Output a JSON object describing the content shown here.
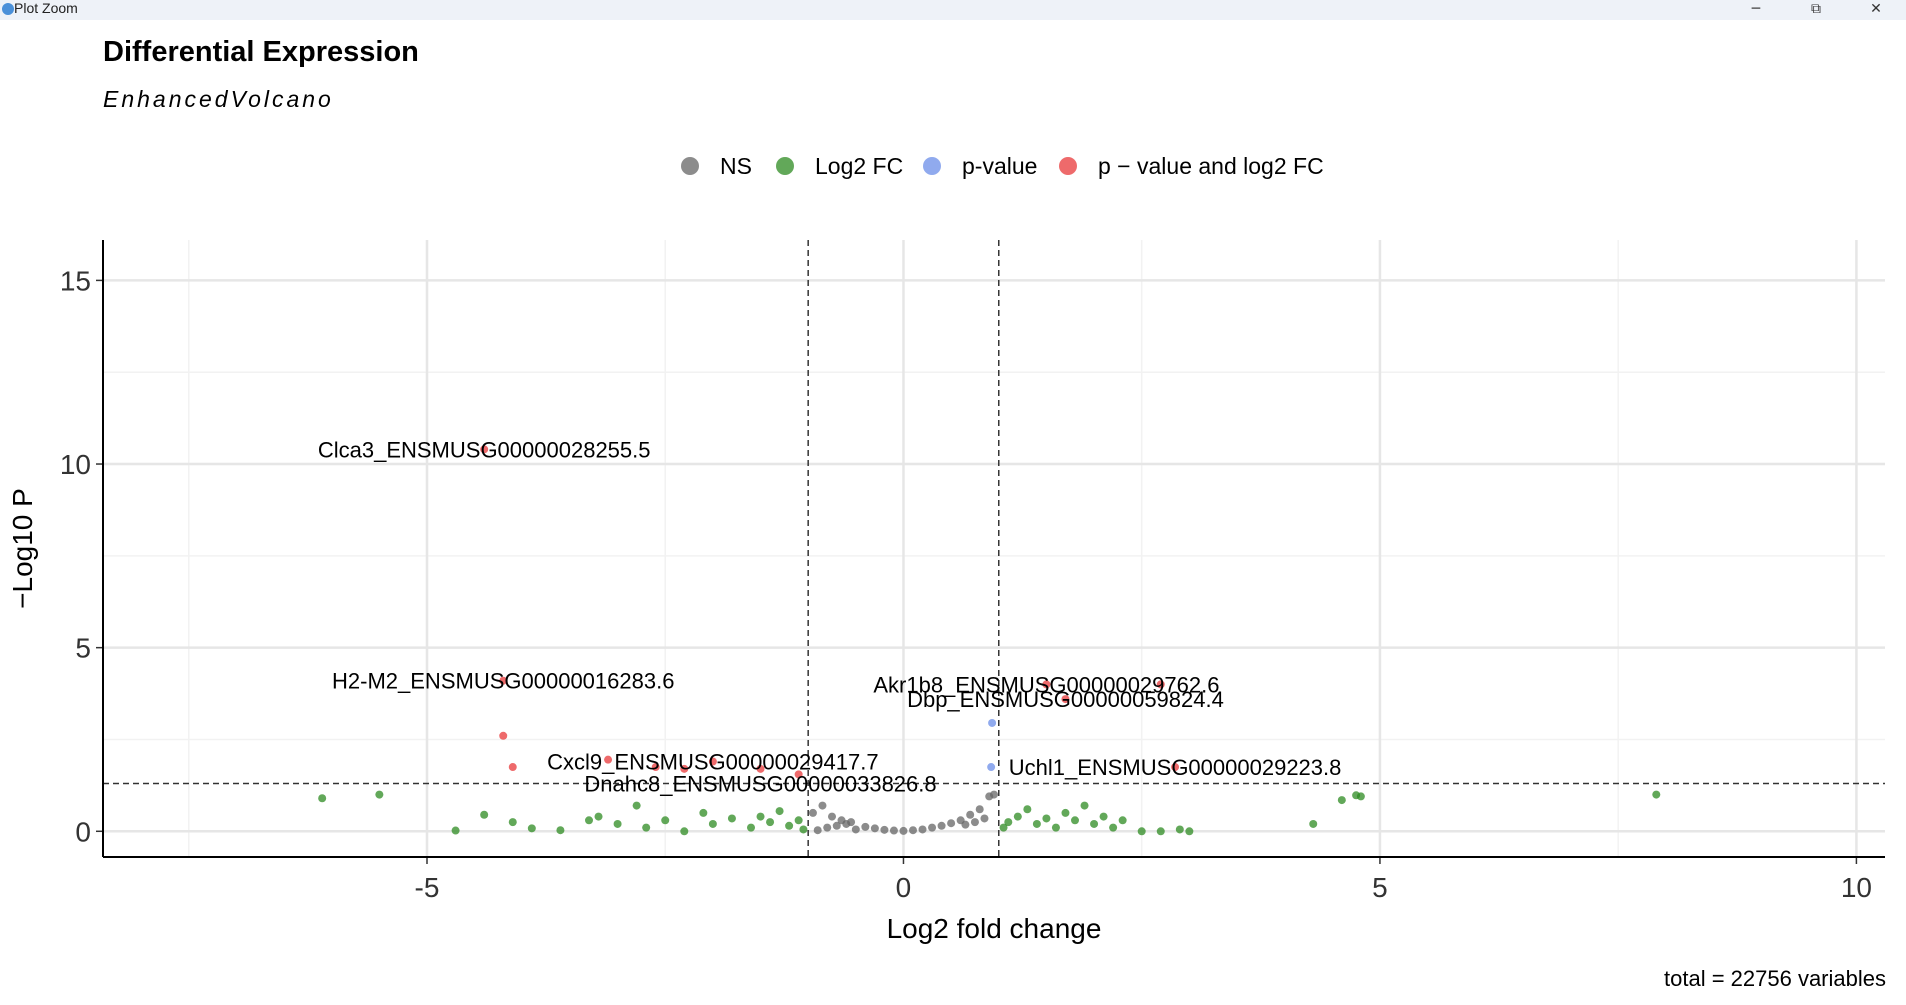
{
  "window": {
    "title": "Plot Zoom",
    "minimize_glyph": "─",
    "restore_glyph": "⧉",
    "close_glyph": "✕"
  },
  "plot": {
    "title": "Differential Expression",
    "subtitle": "EnhancedVolcano",
    "caption": "total = 22756 variables"
  },
  "colors": {
    "NS": "#666666",
    "Log2FC": "#2e8b22",
    "pvalue": "#6b8ee8",
    "both": "#e8383a"
  },
  "chart_data": {
    "type": "scatter",
    "xlabel": "Log2 fold change",
    "ylabel": "−Log10 P",
    "xlim": [
      -8.4,
      10.3
    ],
    "ylim": [
      -0.7,
      16.1
    ],
    "x_ticks": [
      "-5",
      "0",
      "5",
      "10"
    ],
    "x_tick_values": [
      -5,
      0,
      5,
      10
    ],
    "y_ticks": [
      "0",
      "5",
      "10",
      "15"
    ],
    "y_tick_values": [
      0,
      5,
      10,
      15
    ],
    "grid": true,
    "legend_position": "top",
    "legend": [
      {
        "key": "NS",
        "label": "NS"
      },
      {
        "key": "Log2FC",
        "label": "Log2 FC"
      },
      {
        "key": "pvalue",
        "label": "p-value"
      },
      {
        "key": "both",
        "label": "p − value and log2 FC"
      }
    ],
    "fc_cutoff": [
      -1,
      1
    ],
    "p_cutoff_log10": 1.3,
    "series": [
      {
        "name": "NS",
        "points": [
          [
            -0.9,
            0.03
          ],
          [
            -0.8,
            0.1
          ],
          [
            -0.7,
            0.15
          ],
          [
            -0.6,
            0.2
          ],
          [
            -0.5,
            0.05
          ],
          [
            -0.4,
            0.12
          ],
          [
            -0.3,
            0.08
          ],
          [
            -0.2,
            0.04
          ],
          [
            -0.1,
            0.02
          ],
          [
            0,
            0.01
          ],
          [
            0.1,
            0.03
          ],
          [
            0.2,
            0.05
          ],
          [
            0.3,
            0.1
          ],
          [
            0.4,
            0.15
          ],
          [
            0.5,
            0.22
          ],
          [
            0.6,
            0.3
          ],
          [
            0.7,
            0.45
          ],
          [
            0.8,
            0.6
          ],
          [
            0.9,
            0.95
          ],
          [
            0.95,
            1.0
          ],
          [
            -0.95,
            0.5
          ],
          [
            -0.85,
            0.7
          ],
          [
            -0.75,
            0.4
          ],
          [
            -0.65,
            0.3
          ],
          [
            -0.55,
            0.25
          ],
          [
            0.85,
            0.35
          ],
          [
            0.75,
            0.25
          ],
          [
            0.65,
            0.18
          ]
        ]
      },
      {
        "name": "Log2 FC",
        "points": [
          [
            -6.1,
            0.9
          ],
          [
            -5.5,
            1.0
          ],
          [
            -4.7,
            0.02
          ],
          [
            -4.4,
            0.45
          ],
          [
            -4.1,
            0.25
          ],
          [
            -3.9,
            0.08
          ],
          [
            -3.6,
            0.03
          ],
          [
            -3.3,
            0.3
          ],
          [
            -3.2,
            0.4
          ],
          [
            -3.0,
            0.2
          ],
          [
            -2.8,
            0.7
          ],
          [
            -2.7,
            0.1
          ],
          [
            -2.5,
            0.3
          ],
          [
            -2.3,
            0.0
          ],
          [
            -2.1,
            0.5
          ],
          [
            -2.0,
            0.2
          ],
          [
            -1.8,
            0.35
          ],
          [
            -1.6,
            0.1
          ],
          [
            -1.5,
            0.4
          ],
          [
            -1.4,
            0.25
          ],
          [
            -1.3,
            0.55
          ],
          [
            -1.2,
            0.15
          ],
          [
            -1.1,
            0.3
          ],
          [
            -1.05,
            0.05
          ],
          [
            1.05,
            0.1
          ],
          [
            1.1,
            0.25
          ],
          [
            1.2,
            0.4
          ],
          [
            1.3,
            0.6
          ],
          [
            1.4,
            0.2
          ],
          [
            1.5,
            0.35
          ],
          [
            1.6,
            0.1
          ],
          [
            1.7,
            0.5
          ],
          [
            1.8,
            0.3
          ],
          [
            1.9,
            0.7
          ],
          [
            2.0,
            0.2
          ],
          [
            2.1,
            0.4
          ],
          [
            2.2,
            0.1
          ],
          [
            2.3,
            0.3
          ],
          [
            2.5,
            0.0
          ],
          [
            2.7,
            0.0
          ],
          [
            2.9,
            0.05
          ],
          [
            3.0,
            0.0
          ],
          [
            4.3,
            0.2
          ],
          [
            4.6,
            0.85
          ],
          [
            4.75,
            0.98
          ],
          [
            4.8,
            0.95
          ],
          [
            7.9,
            1.0
          ]
        ]
      },
      {
        "name": "p-value",
        "points": [
          [
            0.93,
            2.95
          ],
          [
            0.92,
            1.75
          ]
        ]
      },
      {
        "name": "p − value and log2 FC",
        "points": [
          [
            -4.4,
            10.4
          ],
          [
            -4.2,
            4.1
          ],
          [
            -4.2,
            2.6
          ],
          [
            -4.1,
            1.75
          ],
          [
            -3.1,
            1.95
          ],
          [
            -2.6,
            1.75
          ],
          [
            -2.3,
            1.7
          ],
          [
            -2.0,
            1.9
          ],
          [
            -1.5,
            1.7
          ],
          [
            -1.1,
            1.55
          ],
          [
            1.5,
            4.0
          ],
          [
            1.7,
            3.6
          ],
          [
            2.7,
            4.0
          ],
          [
            2.85,
            1.75
          ]
        ]
      }
    ],
    "labels": [
      {
        "text": "Clca3_ENSMUSG00000028255.5",
        "x": -4.4,
        "y": 10.4
      },
      {
        "text": "H2-M2_ENSMUSG00000016283.6",
        "x": -4.2,
        "y": 4.1
      },
      {
        "text": "Akr1b8_ENSMUSG00000029762.6",
        "x": 1.5,
        "y": 4.0
      },
      {
        "text": "Dbp_ENSMUSG00000059824.4",
        "x": 1.7,
        "y": 3.6
      },
      {
        "text": "Cxcl9_ENSMUSG00000029417.7",
        "x": -2.0,
        "y": 1.9
      },
      {
        "text": "Uchl1_ENSMUSG00000029223.8",
        "x": 2.85,
        "y": 1.75
      },
      {
        "text": "Dnahc8_ENSMUSG00000033826.8",
        "x": -1.5,
        "y": 1.3
      }
    ]
  }
}
